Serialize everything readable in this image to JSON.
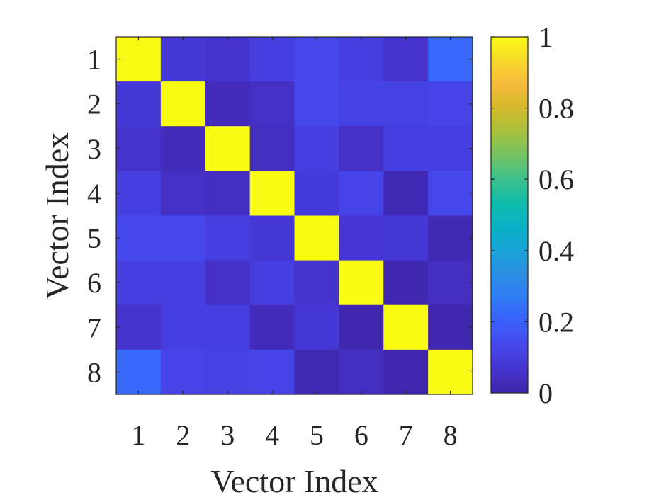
{
  "chart_data": {
    "type": "heatmap",
    "xlabel": "Vector Index",
    "ylabel": "Vector Index",
    "x_categories": [
      "1",
      "2",
      "3",
      "4",
      "5",
      "6",
      "7",
      "8"
    ],
    "y_categories": [
      "1",
      "2",
      "3",
      "4",
      "5",
      "6",
      "7",
      "8"
    ],
    "values": [
      [
        1.0,
        0.08,
        0.06,
        0.1,
        0.13,
        0.1,
        0.06,
        0.22
      ],
      [
        0.08,
        1.0,
        0.03,
        0.05,
        0.13,
        0.11,
        0.11,
        0.12
      ],
      [
        0.06,
        0.03,
        1.0,
        0.04,
        0.1,
        0.05,
        0.1,
        0.1
      ],
      [
        0.1,
        0.05,
        0.04,
        1.0,
        0.09,
        0.12,
        0.02,
        0.13
      ],
      [
        0.13,
        0.13,
        0.1,
        0.08,
        1.0,
        0.07,
        0.08,
        0.02
      ],
      [
        0.1,
        0.1,
        0.05,
        0.1,
        0.06,
        1.0,
        0.01,
        0.04
      ],
      [
        0.06,
        0.1,
        0.1,
        0.03,
        0.08,
        0.01,
        1.0,
        0.01
      ],
      [
        0.22,
        0.12,
        0.11,
        0.12,
        0.02,
        0.04,
        0.01,
        1.0
      ]
    ],
    "colormap": "parula",
    "clim": [
      0,
      1
    ],
    "colorbar": {
      "ticks": [
        0,
        0.2,
        0.4,
        0.6,
        0.8,
        1
      ],
      "tick_labels": [
        "0",
        "0.2",
        "0.4",
        "0.6",
        "0.8",
        "1"
      ],
      "placement": "right"
    },
    "grid": false
  }
}
